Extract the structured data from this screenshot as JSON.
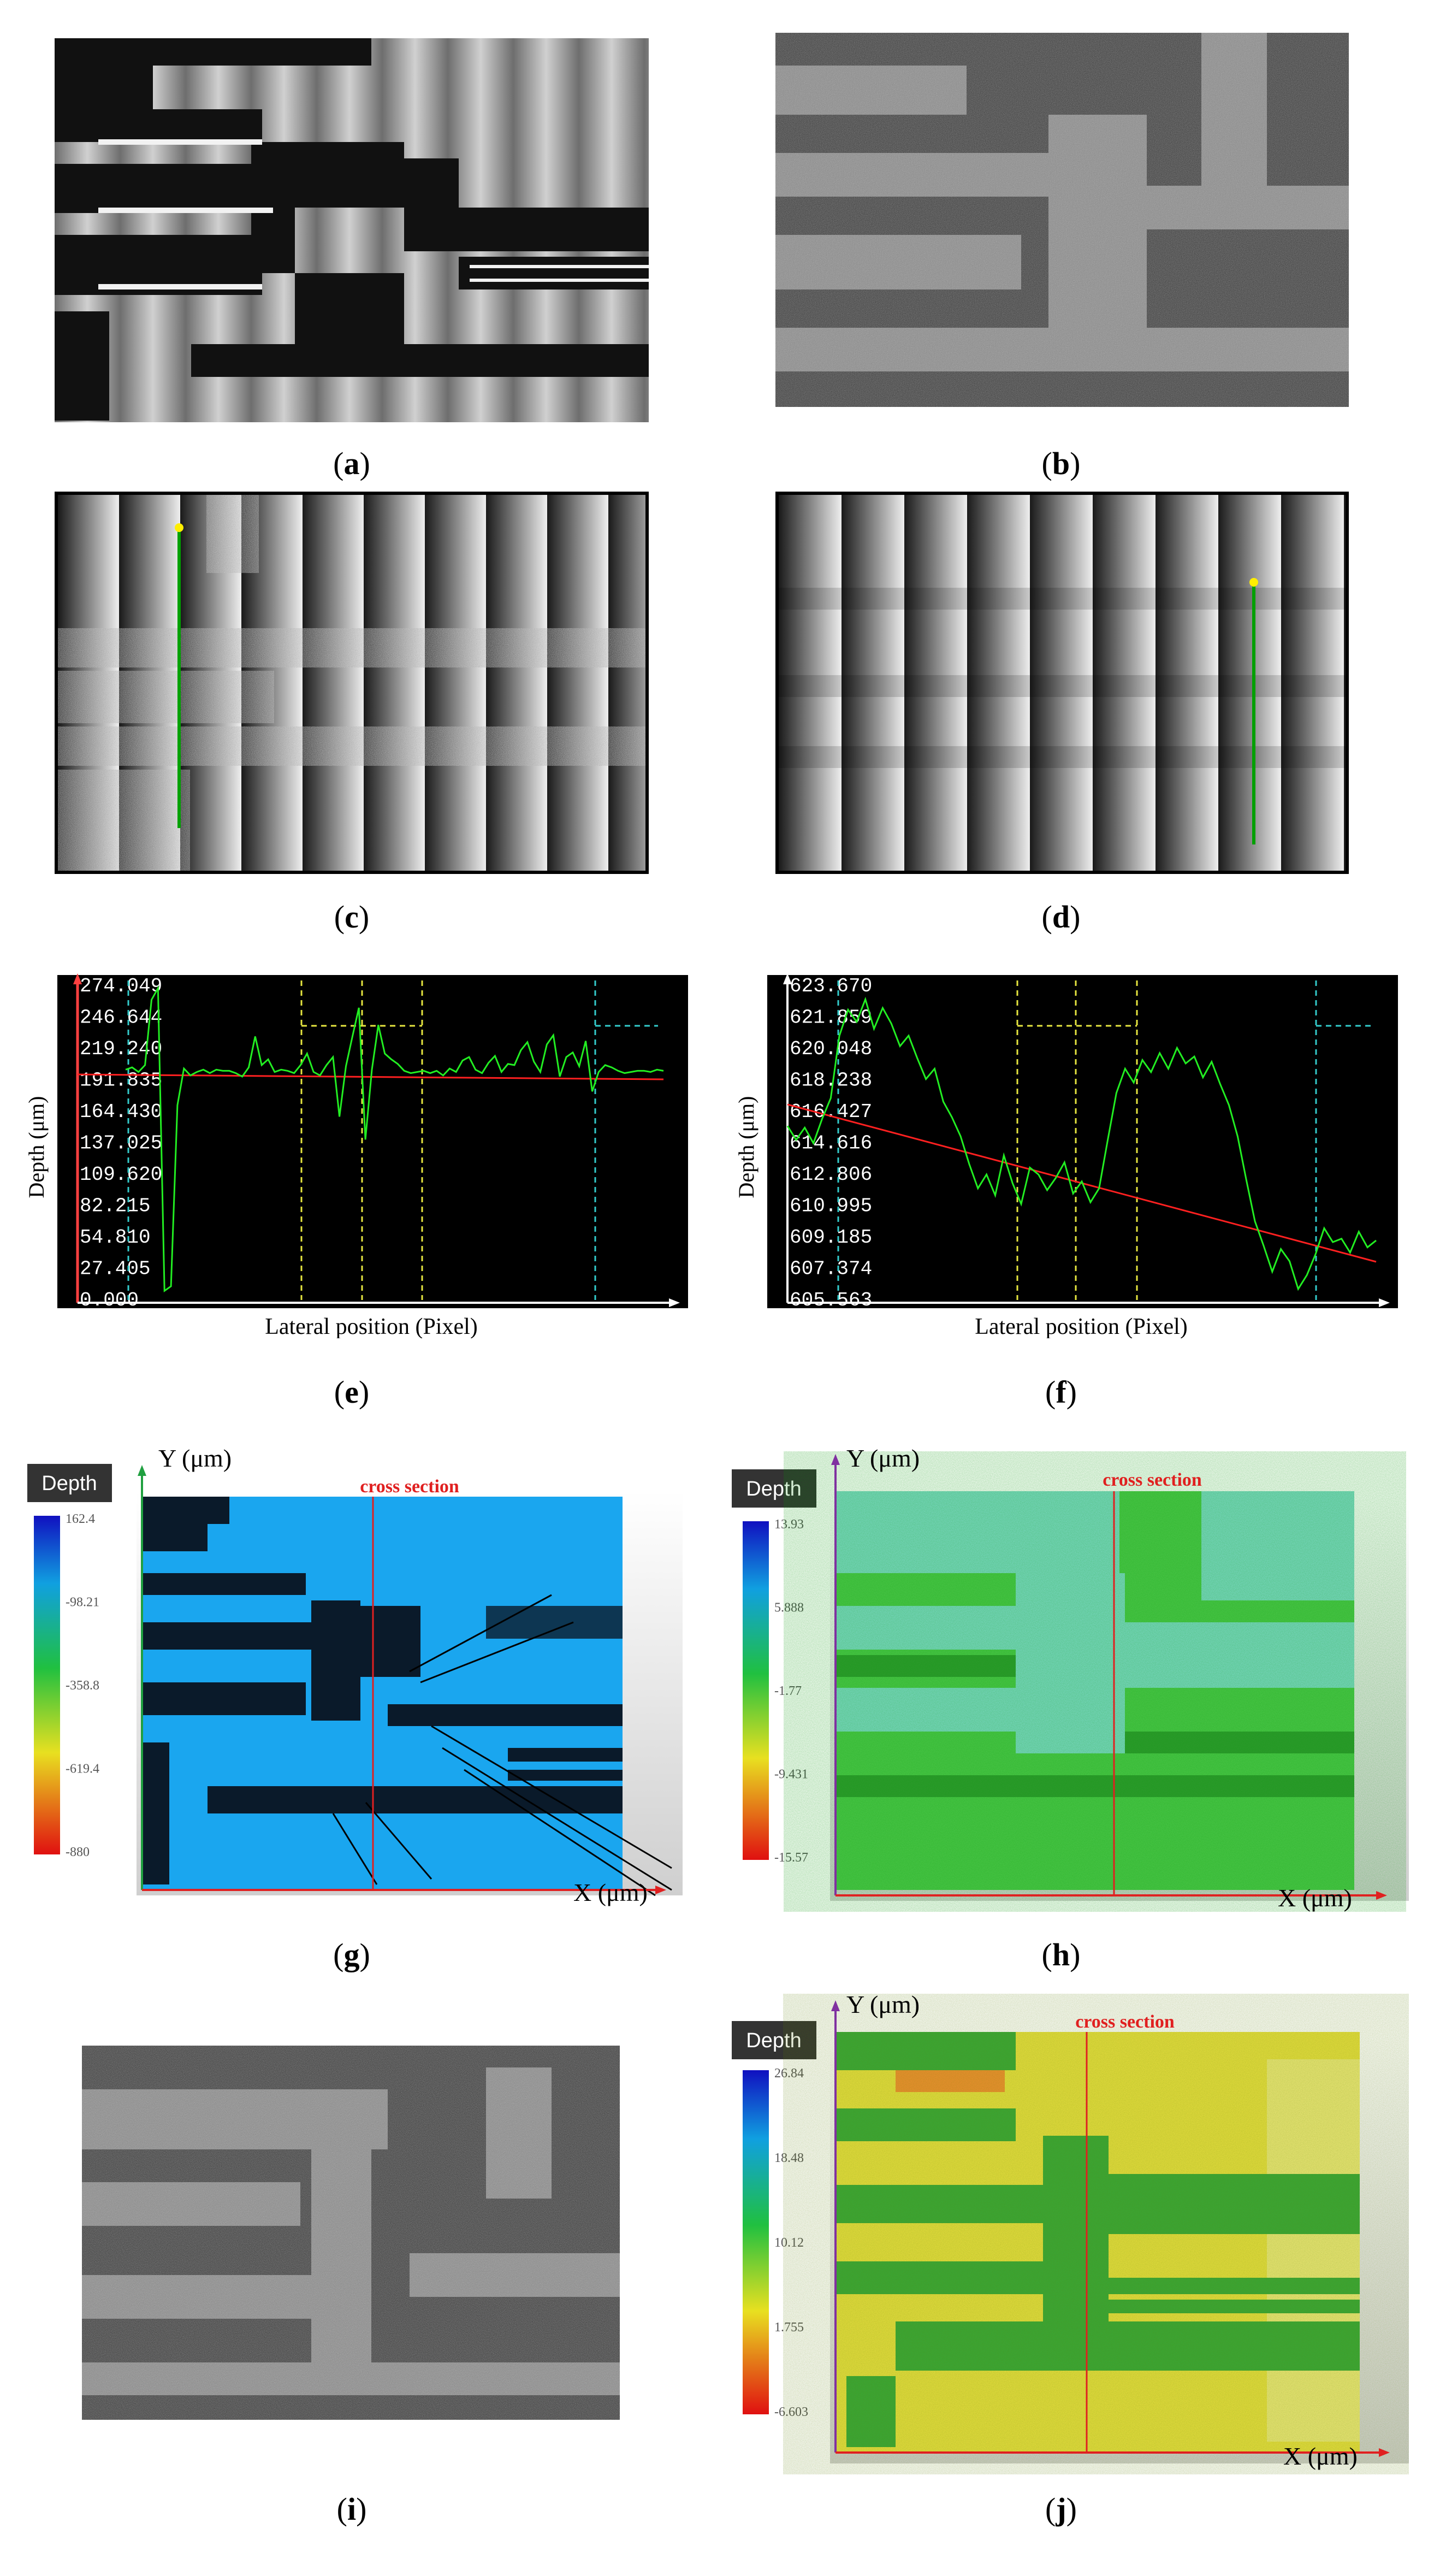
{
  "captions": {
    "a": "a",
    "b": "b",
    "c": "c",
    "d": "d",
    "e": "e",
    "f": "f",
    "g": "g",
    "h": "h",
    "i": "i",
    "j": "j"
  },
  "profile_e": {
    "ylabel": "Depth (μm)",
    "xlabel": "Lateral position (Pixel)",
    "ticks": [
      "274.049",
      "246.644",
      "219.240",
      "191.835",
      "164.430",
      "137.025",
      "109.620",
      "82.215",
      "54.810",
      "27.405",
      "0.000"
    ]
  },
  "profile_f": {
    "ylabel": "Depth (μm)",
    "xlabel": "Lateral position (Pixel)",
    "ticks": [
      "623.670",
      "621.859",
      "620.048",
      "618.238",
      "616.427",
      "614.616",
      "612.806",
      "610.995",
      "609.185",
      "607.374",
      "605.563"
    ]
  },
  "map_g": {
    "colorbar_title": "Depth",
    "x_axis": "X (μm)",
    "y_axis": "Y (μm)",
    "cross_section": "cross section",
    "colorbar_ticks": [
      "162.4",
      "-98.21",
      "-358.8",
      "-619.4",
      "-880"
    ]
  },
  "map_h": {
    "colorbar_title": "Depth",
    "x_axis": "X (μm)",
    "y_axis": "Y (μm)",
    "cross_section": "cross section",
    "colorbar_ticks": [
      "13.93",
      "5.888",
      "-1.77",
      "-9.431",
      "-15.57"
    ]
  },
  "map_j": {
    "colorbar_title": "Depth",
    "x_axis": "X (μm)",
    "y_axis": "Y (μm)",
    "cross_section": "cross section",
    "colorbar_ticks": [
      "26.84",
      "18.48",
      "10.12",
      "1.755",
      "-6.603"
    ]
  },
  "chart_data": [
    {
      "type": "line",
      "panel": "e",
      "xlabel": "Lateral position (Pixel)",
      "ylabel": "Depth (μm)",
      "ylim": [
        0.0,
        274.049
      ],
      "series": [
        {
          "values": [
            201,
            203,
            199,
            205,
            262,
            272,
            8,
            12,
            170,
            202,
            196,
            199,
            201,
            198,
            201,
            200,
            200,
            198,
            195,
            203,
            230,
            205,
            210,
            199,
            201,
            200,
            198,
            205,
            215,
            199,
            196,
            205,
            212,
            160,
            204,
            230,
            255,
            140,
            201,
            240,
            215,
            210,
            206,
            200,
            198,
            199,
            200,
            198,
            200,
            196,
            202,
            199,
            209,
            212,
            201,
            198,
            207,
            213,
            199,
            206,
            205,
            218,
            225,
            208,
            199,
            223,
            231,
            195,
            212,
            216,
            204,
            226,
            182,
            199,
            205,
            203,
            200,
            198,
            199,
            200,
            200,
            199,
            201,
            200
          ]
        }
      ]
    },
    {
      "type": "line",
      "panel": "f",
      "xlabel": "Lateral position (Pixel)",
      "ylabel": "Depth (μm)",
      "ylim": [
        605.563,
        623.67
      ],
      "series": [
        {
          "values": [
            615.6,
            614.8,
            615.5,
            614.6,
            616.0,
            617.2,
            620.8,
            622.3,
            621.6,
            622.9,
            621.2,
            622.4,
            621.5,
            620.2,
            620.8,
            619.5,
            618.3,
            618.9,
            617.0,
            616.1,
            615.0,
            613.4,
            612.0,
            612.8,
            611.6,
            613.9,
            612.3,
            611.1,
            613.2,
            612.8,
            611.9,
            612.6,
            613.5,
            611.7,
            612.4,
            611.2,
            612.0,
            614.8,
            617.5,
            618.9,
            618.1,
            619.4,
            618.7,
            619.8,
            618.9,
            620.1,
            619.2,
            619.6,
            618.4,
            619.3,
            618.0,
            616.8,
            615.0,
            612.5,
            610.1,
            608.7,
            607.2,
            608.5,
            607.8,
            606.2,
            607.0,
            608.2,
            609.7,
            608.9,
            609.1,
            608.3,
            609.5,
            608.6,
            609.0
          ]
        }
      ]
    }
  ]
}
